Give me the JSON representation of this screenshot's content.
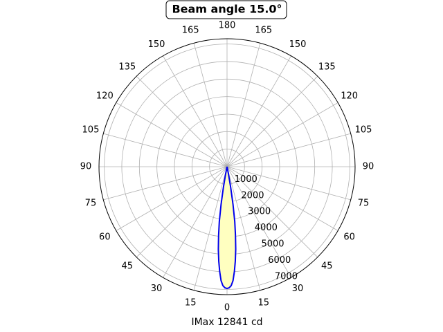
{
  "chart_data": {
    "type": "polar",
    "title": "Beam angle 15.0°",
    "xlabel": "IMax 12841 cd",
    "theta": [
      -12,
      -11,
      -10,
      -9,
      -8,
      -7,
      -6,
      -5,
      -4,
      -3,
      -2,
      -1,
      0,
      1,
      2,
      3,
      4,
      5,
      6,
      7,
      8,
      9,
      10,
      11,
      12
    ],
    "r": [
      0,
      400,
      1180,
      2170,
      3160,
      3950,
      4740,
      5410,
      6000,
      6510,
      6790,
      6910,
      6950,
      6910,
      6790,
      6510,
      6000,
      5410,
      4740,
      3950,
      3160,
      2170,
      1180,
      400,
      0
    ],
    "line_color": "#0000ee",
    "fill_color": "#ffffc0",
    "rlim": [
      0,
      7300
    ],
    "rticks": [
      1000,
      2000,
      3000,
      4000,
      5000,
      6000,
      7000
    ],
    "thetaticks": [
      0,
      15,
      30,
      45,
      60,
      75,
      90,
      105,
      120,
      135,
      150,
      165,
      180,
      {
        "value": -15,
        "label": "15"
      },
      {
        "value": -30,
        "label": "30"
      },
      {
        "value": -45,
        "label": "45"
      },
      {
        "value": -60,
        "label": "60"
      },
      {
        "value": -75,
        "label": "75"
      },
      {
        "value": -90,
        "label": "90"
      },
      {
        "value": -105,
        "label": "105"
      },
      {
        "value": -120,
        "label": "120"
      },
      {
        "value": -135,
        "label": "135"
      },
      {
        "value": -150,
        "label": "150"
      },
      {
        "value": -165,
        "label": "165"
      }
    ],
    "grid": true
  }
}
